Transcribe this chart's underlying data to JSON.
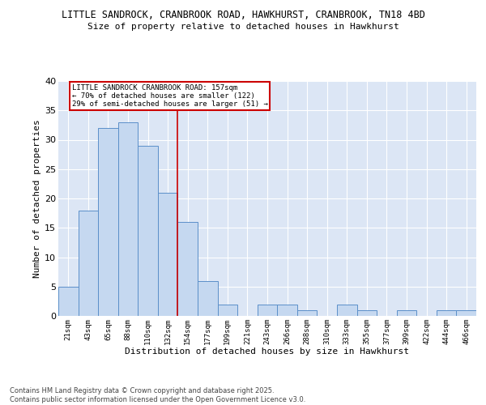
{
  "title_line1": "LITTLE SANDROCK, CRANBROOK ROAD, HAWKHURST, CRANBROOK, TN18 4BD",
  "title_line2": "Size of property relative to detached houses in Hawkhurst",
  "xlabel": "Distribution of detached houses by size in Hawkhurst",
  "ylabel": "Number of detached properties",
  "categories": [
    "21sqm",
    "43sqm",
    "65sqm",
    "88sqm",
    "110sqm",
    "132sqm",
    "154sqm",
    "177sqm",
    "199sqm",
    "221sqm",
    "243sqm",
    "266sqm",
    "288sqm",
    "310sqm",
    "333sqm",
    "355sqm",
    "377sqm",
    "399sqm",
    "422sqm",
    "444sqm",
    "466sqm"
  ],
  "values": [
    5,
    18,
    32,
    33,
    29,
    21,
    16,
    6,
    2,
    0,
    2,
    2,
    1,
    0,
    2,
    1,
    0,
    1,
    0,
    1,
    1
  ],
  "bar_color": "#c5d8f0",
  "bar_edge_color": "#5b8fc9",
  "ylim": [
    0,
    40
  ],
  "yticks": [
    0,
    5,
    10,
    15,
    20,
    25,
    30,
    35,
    40
  ],
  "vline_index": 6,
  "vline_color": "#cc0000",
  "annotation_line1": "LITTLE SANDROCK CRANBROOK ROAD: 157sqm",
  "annotation_line2": "← 70% of detached houses are smaller (122)",
  "annotation_line3": "29% of semi-detached houses are larger (51) →",
  "annotation_box_color": "#cc0000",
  "bg_color": "#dce6f5",
  "footer": "Contains HM Land Registry data © Crown copyright and database right 2025.\nContains public sector information licensed under the Open Government Licence v3.0."
}
